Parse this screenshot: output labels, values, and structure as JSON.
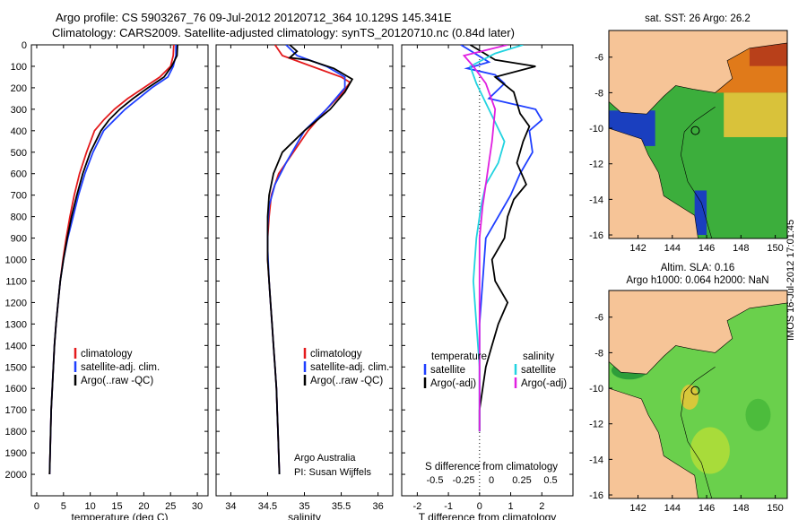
{
  "header": {
    "line1": "Argo profile: CS 5903267_76 09-Jul-2012 20120712_364 10.129S 145.341E",
    "line2": "Climatology: CARS2009. Satellite-adjusted climatology: synTS_20120710.nc (0.84d later)"
  },
  "stamp": "IMOS 16-Jul-2012 17:01:45",
  "colors": {
    "climatology": "#e41a1c",
    "satellite": "#1f3fff",
    "argo": "#000000",
    "sat_s": "#22d3e0",
    "argo_s": "#e020e0",
    "land": "#f6c497"
  },
  "chart_data": [
    {
      "type": "line",
      "id": "temperature",
      "xlabel": "temperature (deg C)",
      "ylabel": "",
      "xlim": [
        -1,
        32
      ],
      "ylim": [
        2100,
        0
      ],
      "xticks": [
        0,
        5,
        10,
        15,
        20,
        25,
        30
      ],
      "yticks": [
        0,
        100,
        200,
        300,
        400,
        500,
        600,
        700,
        800,
        900,
        1000,
        1100,
        1200,
        1300,
        1400,
        1500,
        1600,
        1700,
        1800,
        1900,
        2000
      ],
      "legend": [
        "climatology",
        "satellite-adj. clim.",
        "Argo(..raw -QC)"
      ],
      "series": [
        {
          "name": "climatology",
          "color": "#e41a1c",
          "points": [
            [
              25.6,
              0
            ],
            [
              25.5,
              50
            ],
            [
              25,
              100
            ],
            [
              23,
              150
            ],
            [
              20,
              200
            ],
            [
              17,
              250
            ],
            [
              14.5,
              300
            ],
            [
              12.5,
              350
            ],
            [
              10.8,
              400
            ],
            [
              9.3,
              500
            ],
            [
              8,
              600
            ],
            [
              7,
              700
            ],
            [
              6.2,
              800
            ],
            [
              5.5,
              900
            ],
            [
              4.9,
              1000
            ],
            [
              4.4,
              1100
            ],
            [
              4,
              1200
            ],
            [
              3.6,
              1300
            ],
            [
              3.3,
              1400
            ],
            [
              3.1,
              1500
            ],
            [
              2.9,
              1600
            ],
            [
              2.7,
              1700
            ],
            [
              2.6,
              1800
            ],
            [
              2.5,
              1900
            ],
            [
              2.4,
              2000
            ]
          ]
        },
        {
          "name": "satellite-adj. clim.",
          "color": "#1f3fff",
          "points": [
            [
              26,
              0
            ],
            [
              26,
              50
            ],
            [
              25.5,
              100
            ],
            [
              24.5,
              150
            ],
            [
              21.5,
              200
            ],
            [
              19,
              250
            ],
            [
              16.5,
              300
            ],
            [
              14.5,
              350
            ],
            [
              12.5,
              400
            ],
            [
              10.5,
              500
            ],
            [
              9,
              600
            ],
            [
              7.8,
              700
            ],
            [
              6.8,
              800
            ],
            [
              5.8,
              900
            ],
            [
              5,
              1000
            ],
            [
              4.4,
              1100
            ],
            [
              4,
              1200
            ],
            [
              3.6,
              1300
            ],
            [
              3.3,
              1400
            ],
            [
              3.1,
              1500
            ],
            [
              2.9,
              1600
            ],
            [
              2.7,
              1700
            ],
            [
              2.6,
              1800
            ],
            [
              2.5,
              1900
            ],
            [
              2.4,
              2000
            ]
          ]
        },
        {
          "name": "Argo(..raw -QC)",
          "color": "#000000",
          "points": [
            [
              26.3,
              0
            ],
            [
              26.2,
              50
            ],
            [
              25.2,
              100
            ],
            [
              23.8,
              150
            ],
            [
              20.8,
              200
            ],
            [
              18,
              250
            ],
            [
              15.5,
              300
            ],
            [
              13.5,
              350
            ],
            [
              12,
              400
            ],
            [
              10,
              500
            ],
            [
              8.6,
              600
            ],
            [
              7.5,
              700
            ],
            [
              6.5,
              800
            ],
            [
              5.7,
              900
            ],
            [
              5,
              1000
            ],
            [
              4.4,
              1100
            ],
            [
              4,
              1200
            ],
            [
              3.6,
              1300
            ],
            [
              3.3,
              1400
            ],
            [
              3.1,
              1500
            ],
            [
              2.9,
              1600
            ],
            [
              2.7,
              1700
            ],
            [
              2.6,
              1800
            ],
            [
              2.5,
              1900
            ],
            [
              2.4,
              2000
            ]
          ]
        }
      ]
    },
    {
      "type": "line",
      "id": "salinity",
      "xlabel": "salinity",
      "xlim": [
        33.8,
        36.2
      ],
      "ylim": [
        2100,
        0
      ],
      "xticks": [
        34,
        34.5,
        35,
        35.5,
        36
      ],
      "yticks": [
        0,
        100,
        200,
        300,
        400,
        500,
        600,
        700,
        800,
        900,
        1000,
        1100,
        1200,
        1300,
        1400,
        1500,
        1600,
        1700,
        1800,
        1900,
        2000
      ],
      "legend": [
        "climatology",
        "satellite-adj. clim.",
        "Argo(..raw -QC)"
      ],
      "annotation": [
        "Argo Australia",
        "PI: Susan Wijffels"
      ],
      "series": [
        {
          "name": "climatology",
          "color": "#e41a1c",
          "points": [
            [
              34.6,
              0
            ],
            [
              34.7,
              50
            ],
            [
              35.1,
              100
            ],
            [
              35.5,
              150
            ],
            [
              35.62,
              175
            ],
            [
              35.5,
              230
            ],
            [
              35.3,
              300
            ],
            [
              35.05,
              400
            ],
            [
              34.85,
              500
            ],
            [
              34.65,
              600
            ],
            [
              34.55,
              700
            ],
            [
              34.52,
              800
            ],
            [
              34.5,
              900
            ],
            [
              34.5,
              1000
            ],
            [
              34.52,
              1100
            ],
            [
              34.54,
              1200
            ],
            [
              34.56,
              1300
            ],
            [
              34.58,
              1400
            ],
            [
              34.6,
              1500
            ],
            [
              34.62,
              1600
            ],
            [
              34.63,
              1700
            ],
            [
              34.64,
              1800
            ],
            [
              34.65,
              1900
            ],
            [
              34.66,
              2000
            ]
          ]
        },
        {
          "name": "satellite-adj. clim.",
          "color": "#1f3fff",
          "points": [
            [
              34.75,
              0
            ],
            [
              34.9,
              50
            ],
            [
              35.3,
              100
            ],
            [
              35.55,
              150
            ],
            [
              35.55,
              200
            ],
            [
              35.4,
              260
            ],
            [
              35.3,
              300
            ],
            [
              35,
              400
            ],
            [
              34.75,
              550
            ],
            [
              34.6,
              650
            ],
            [
              34.52,
              750
            ],
            [
              34.5,
              850
            ],
            [
              34.5,
              950
            ],
            [
              34.52,
              1100
            ],
            [
              34.54,
              1200
            ],
            [
              34.56,
              1300
            ],
            [
              34.58,
              1400
            ],
            [
              34.6,
              1500
            ],
            [
              34.62,
              1600
            ],
            [
              34.63,
              1700
            ],
            [
              34.64,
              1800
            ],
            [
              34.65,
              1900
            ],
            [
              34.66,
              2000
            ]
          ]
        },
        {
          "name": "Argo(..raw -QC)",
          "color": "#000000",
          "points": [
            [
              34.8,
              0
            ],
            [
              34.9,
              30
            ],
            [
              34.8,
              60
            ],
            [
              35.05,
              70
            ],
            [
              35.4,
              110
            ],
            [
              35.65,
              160
            ],
            [
              35.55,
              220
            ],
            [
              35.35,
              300
            ],
            [
              35,
              400
            ],
            [
              34.7,
              500
            ],
            [
              34.58,
              600
            ],
            [
              34.52,
              700
            ],
            [
              34.5,
              800
            ],
            [
              34.5,
              900
            ],
            [
              34.5,
              1000
            ],
            [
              34.52,
              1100
            ],
            [
              34.54,
              1200
            ],
            [
              34.56,
              1300
            ],
            [
              34.58,
              1400
            ],
            [
              34.6,
              1500
            ],
            [
              34.62,
              1600
            ],
            [
              34.63,
              1700
            ],
            [
              34.64,
              1800
            ],
            [
              34.65,
              1900
            ],
            [
              34.66,
              2000
            ]
          ]
        }
      ]
    },
    {
      "type": "line",
      "id": "difference",
      "xlabel": "T difference from climatology",
      "xlabel2": "S difference from climatology",
      "xlim": [
        -2.5,
        3
      ],
      "ylim": [
        2100,
        0
      ],
      "xticks": [
        -2,
        -1,
        0,
        1,
        2
      ],
      "xticks2_labels": [
        "-0.5",
        "-0.25",
        "0",
        "0.25",
        "0.5"
      ],
      "yticks": [
        0,
        100,
        200,
        300,
        400,
        500,
        600,
        700,
        800,
        900,
        1000,
        1100,
        1200,
        1300,
        1400,
        1500,
        1600,
        1700,
        1800,
        1900,
        2000
      ],
      "legend_t_title": "temperature",
      "legend_s_title": "salinity",
      "legend_t": [
        "satellite",
        "Argo(-adj)"
      ],
      "legend_s": [
        "satellite",
        "Argo(-adj)"
      ],
      "series": [
        {
          "name": "T satellite",
          "color": "#1f3fff",
          "points": [
            [
              -0.6,
              0
            ],
            [
              0.3,
              80
            ],
            [
              -0.4,
              110
            ],
            [
              0.5,
              140
            ],
            [
              0.8,
              180
            ],
            [
              0.3,
              250
            ],
            [
              1.8,
              300
            ],
            [
              2,
              350
            ],
            [
              1.6,
              400
            ],
            [
              1.7,
              500
            ],
            [
              1.3,
              600
            ],
            [
              1,
              700
            ],
            [
              0.6,
              800
            ],
            [
              0.2,
              900
            ],
            [
              0.1,
              1100
            ],
            [
              0,
              1300
            ],
            [
              0,
              1500
            ],
            [
              0,
              1700
            ],
            [
              0,
              1800
            ]
          ]
        },
        {
          "name": "T Argo(-adj)",
          "color": "#000000",
          "points": [
            [
              -0.3,
              0
            ],
            [
              0.5,
              70
            ],
            [
              1.8,
              100
            ],
            [
              0.5,
              150
            ],
            [
              1.1,
              220
            ],
            [
              1.3,
              320
            ],
            [
              1.6,
              380
            ],
            [
              1.4,
              450
            ],
            [
              1.2,
              550
            ],
            [
              1.5,
              650
            ],
            [
              1.1,
              720
            ],
            [
              0.9,
              800
            ],
            [
              0.8,
              900
            ],
            [
              0.4,
              1000
            ],
            [
              0.5,
              1100
            ],
            [
              0.9,
              1200
            ],
            [
              0.6,
              1300
            ],
            [
              0.4,
              1400
            ],
            [
              0.2,
              1500
            ],
            [
              0.1,
              1600
            ],
            [
              0,
              1700
            ],
            [
              0,
              1800
            ]
          ]
        },
        {
          "name": "S satellite",
          "color": "#22d3e0",
          "points": [
            [
              1.4,
              0
            ],
            [
              0.5,
              40
            ],
            [
              -0.3,
              100
            ],
            [
              -0.1,
              180
            ],
            [
              0.3,
              300
            ],
            [
              0.8,
              450
            ],
            [
              0.6,
              550
            ],
            [
              0.2,
              650
            ],
            [
              0.05,
              750
            ],
            [
              -0.1,
              900
            ],
            [
              -0.2,
              1100
            ],
            [
              -0.1,
              1300
            ],
            [
              0,
              1500
            ],
            [
              0,
              1700
            ],
            [
              0,
              1800
            ]
          ]
        },
        {
          "name": "S Argo(-adj)",
          "color": "#e020e0",
          "points": [
            [
              0.9,
              0
            ],
            [
              -0.5,
              50
            ],
            [
              -0.2,
              100
            ],
            [
              0.2,
              180
            ],
            [
              0.5,
              300
            ],
            [
              0.4,
              450
            ],
            [
              0.3,
              550
            ],
            [
              0.2,
              650
            ],
            [
              0.1,
              750
            ],
            [
              0,
              900
            ],
            [
              0,
              1100
            ],
            [
              0,
              1300
            ],
            [
              0,
              1500
            ],
            [
              0,
              1700
            ],
            [
              0,
              1800
            ]
          ]
        }
      ]
    },
    {
      "type": "heatmap",
      "id": "sst-map",
      "title": "sat. SST: 26 Argo: 26.2",
      "xticks": [
        142,
        144,
        146,
        148,
        150
      ],
      "yticks": [
        -6,
        -8,
        -10,
        -12,
        -14,
        -16
      ],
      "xlim": [
        140.3,
        150.7
      ],
      "ylim": [
        -16.2,
        -4.5
      ],
      "marker": {
        "lon": 145.341,
        "lat": -10.129
      }
    },
    {
      "type": "heatmap",
      "id": "sla-map",
      "title": "Altim. SLA: 0.16",
      "subtitle": "Argo h1000: 0.064 h2000: NaN",
      "xticks": [
        142,
        144,
        146,
        148,
        150
      ],
      "yticks": [
        -6,
        -8,
        -10,
        -12,
        -14,
        -16
      ],
      "xlim": [
        140.3,
        150.7
      ],
      "ylim": [
        -16.2,
        -4.5
      ],
      "marker": {
        "lon": 145.341,
        "lat": -10.129
      }
    }
  ]
}
